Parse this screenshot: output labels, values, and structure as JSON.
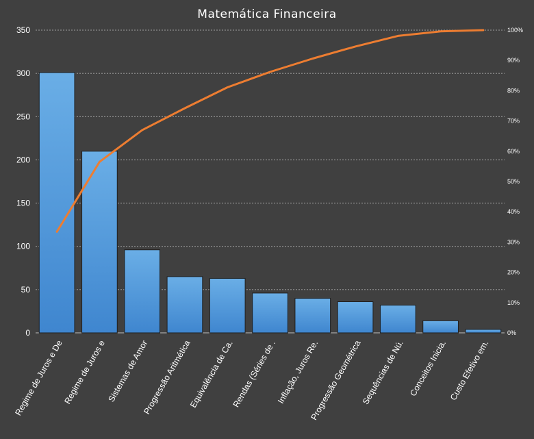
{
  "chart_data": {
    "type": "bar",
    "title": "Matemática Financeira",
    "categories": [
      "Regime de Juros e De",
      "Regime de Juros e",
      "Sistemas de Amor",
      "Progressão Aritmética",
      "Equivalência de Ca.",
      "Rendas (Séries de .",
      "Inflação, Juros Re.",
      "Progressão Geométrica",
      "Sequências de Nú.",
      "Conceitos Inicia.",
      "Custo Efetivo em."
    ],
    "series": [
      {
        "type": "bar",
        "axis": "left",
        "values": [
          301,
          210,
          96,
          65,
          63,
          46,
          40,
          36,
          32,
          14,
          4
        ]
      },
      {
        "type": "line",
        "axis": "right",
        "values": [
          33.4,
          56.5,
          67.0,
          74.2,
          81.1,
          86.2,
          90.6,
          94.6,
          98.1,
          99.6,
          100
        ]
      }
    ],
    "y_left": {
      "min": 0,
      "max": 350,
      "ticks": [
        "0",
        "50",
        "100",
        "150",
        "200",
        "250",
        "300",
        "350"
      ]
    },
    "y_right": {
      "min": 0,
      "max": 100,
      "ticks": [
        "0%",
        "10%",
        "20%",
        "30%",
        "40%",
        "50%",
        "60%",
        "70%",
        "80%",
        "90%",
        "100%"
      ]
    },
    "grid": true,
    "legend": "none",
    "colors": {
      "background": "#404040",
      "bar": "#4a90d9",
      "line": "#ed7d31",
      "grid": "#bfbfbf",
      "text": "#ffffff"
    }
  }
}
